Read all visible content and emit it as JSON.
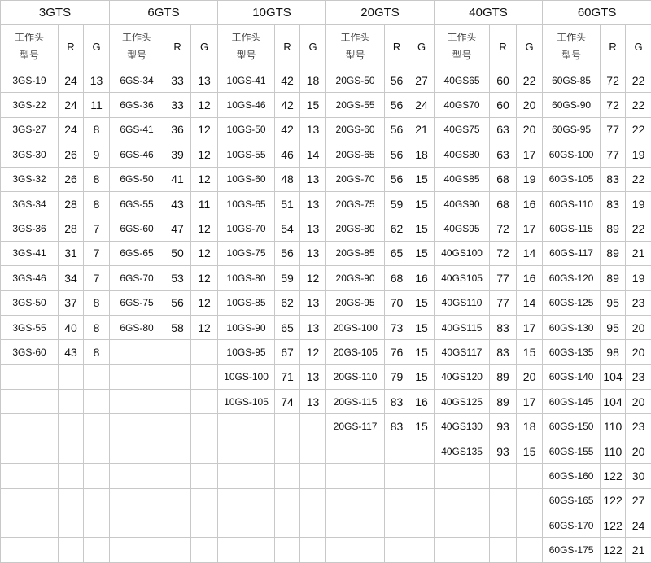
{
  "headers": {
    "model_line1": "工作头",
    "model_line2": "型号",
    "r": "R",
    "g": "G"
  },
  "groups": [
    {
      "title": "3GTS",
      "rows": [
        [
          "3GS-19",
          "24",
          "13"
        ],
        [
          "3GS-22",
          "24",
          "11"
        ],
        [
          "3GS-27",
          "24",
          "8"
        ],
        [
          "3GS-30",
          "26",
          "9"
        ],
        [
          "3GS-32",
          "26",
          "8"
        ],
        [
          "3GS-34",
          "28",
          "8"
        ],
        [
          "3GS-36",
          "28",
          "7"
        ],
        [
          "3GS-41",
          "31",
          "7"
        ],
        [
          "3GS-46",
          "34",
          "7"
        ],
        [
          "3GS-50",
          "37",
          "8"
        ],
        [
          "3GS-55",
          "40",
          "8"
        ],
        [
          "3GS-60",
          "43",
          "8"
        ]
      ]
    },
    {
      "title": "6GTS",
      "rows": [
        [
          "6GS-34",
          "33",
          "13"
        ],
        [
          "6GS-36",
          "33",
          "12"
        ],
        [
          "6GS-41",
          "36",
          "12"
        ],
        [
          "6GS-46",
          "39",
          "12"
        ],
        [
          "6GS-50",
          "41",
          "12"
        ],
        [
          "6GS-55",
          "43",
          "11"
        ],
        [
          "6GS-60",
          "47",
          "12"
        ],
        [
          "6GS-65",
          "50",
          "12"
        ],
        [
          "6GS-70",
          "53",
          "12"
        ],
        [
          "6GS-75",
          "56",
          "12"
        ],
        [
          "6GS-80",
          "58",
          "12"
        ]
      ]
    },
    {
      "title": "10GTS",
      "rows": [
        [
          "10GS-41",
          "42",
          "18"
        ],
        [
          "10GS-46",
          "42",
          "15"
        ],
        [
          "10GS-50",
          "42",
          "13"
        ],
        [
          "10GS-55",
          "46",
          "14"
        ],
        [
          "10GS-60",
          "48",
          "13"
        ],
        [
          "10GS-65",
          "51",
          "13"
        ],
        [
          "10GS-70",
          "54",
          "13"
        ],
        [
          "10GS-75",
          "56",
          "13"
        ],
        [
          "10GS-80",
          "59",
          "12"
        ],
        [
          "10GS-85",
          "62",
          "13"
        ],
        [
          "10GS-90",
          "65",
          "13"
        ],
        [
          "10GS-95",
          "67",
          "12"
        ],
        [
          "10GS-100",
          "71",
          "13"
        ],
        [
          "10GS-105",
          "74",
          "13"
        ]
      ]
    },
    {
      "title": "20GTS",
      "rows": [
        [
          "20GS-50",
          "56",
          "27"
        ],
        [
          "20GS-55",
          "56",
          "24"
        ],
        [
          "20GS-60",
          "56",
          "21"
        ],
        [
          "20GS-65",
          "56",
          "18"
        ],
        [
          "20GS-70",
          "56",
          "15"
        ],
        [
          "20GS-75",
          "59",
          "15"
        ],
        [
          "20GS-80",
          "62",
          "15"
        ],
        [
          "20GS-85",
          "65",
          "15"
        ],
        [
          "20GS-90",
          "68",
          "16"
        ],
        [
          "20GS-95",
          "70",
          "15"
        ],
        [
          "20GS-100",
          "73",
          "15"
        ],
        [
          "20GS-105",
          "76",
          "15"
        ],
        [
          "20GS-110",
          "79",
          "15"
        ],
        [
          "20GS-115",
          "83",
          "16"
        ],
        [
          "20GS-117",
          "83",
          "15"
        ]
      ]
    },
    {
      "title": "40GTS",
      "rows": [
        [
          "40GS65",
          "60",
          "22"
        ],
        [
          "40GS70",
          "60",
          "20"
        ],
        [
          "40GS75",
          "63",
          "20"
        ],
        [
          "40GS80",
          "63",
          "17"
        ],
        [
          "40GS85",
          "68",
          "19"
        ],
        [
          "40GS90",
          "68",
          "16"
        ],
        [
          "40GS95",
          "72",
          "17"
        ],
        [
          "40GS100",
          "72",
          "14"
        ],
        [
          "40GS105",
          "77",
          "16"
        ],
        [
          "40GS110",
          "77",
          "14"
        ],
        [
          "40GS115",
          "83",
          "17"
        ],
        [
          "40GS117",
          "83",
          "15"
        ],
        [
          "40GS120",
          "89",
          "20"
        ],
        [
          "40GS125",
          "89",
          "17"
        ],
        [
          "40GS130",
          "93",
          "18"
        ],
        [
          "40GS135",
          "93",
          "15"
        ]
      ]
    },
    {
      "title": "60GTS",
      "rows": [
        [
          "60GS-85",
          "72",
          "22"
        ],
        [
          "60GS-90",
          "72",
          "22"
        ],
        [
          "60GS-95",
          "77",
          "22"
        ],
        [
          "60GS-100",
          "77",
          "19"
        ],
        [
          "60GS-105",
          "83",
          "22"
        ],
        [
          "60GS-110",
          "83",
          "19"
        ],
        [
          "60GS-115",
          "89",
          "22"
        ],
        [
          "60GS-117",
          "89",
          "21"
        ],
        [
          "60GS-120",
          "89",
          "19"
        ],
        [
          "60GS-125",
          "95",
          "23"
        ],
        [
          "60GS-130",
          "95",
          "20"
        ],
        [
          "60GS-135",
          "98",
          "20"
        ],
        [
          "60GS-140",
          "104",
          "23"
        ],
        [
          "60GS-145",
          "104",
          "20"
        ],
        [
          "60GS-150",
          "110",
          "23"
        ],
        [
          "60GS-155",
          "110",
          "20"
        ],
        [
          "60GS-160",
          "122",
          "30"
        ],
        [
          "60GS-165",
          "122",
          "27"
        ],
        [
          "60GS-170",
          "122",
          "24"
        ],
        [
          "60GS-175",
          "122",
          "21"
        ]
      ]
    }
  ]
}
